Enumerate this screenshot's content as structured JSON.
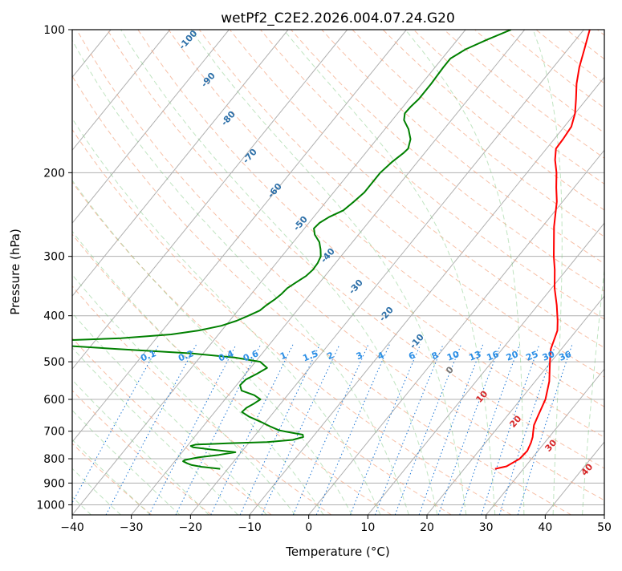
{
  "chart_data": {
    "type": "line",
    "title": "wetPf2_C2E2.2026.004.07.24.G20",
    "xlabel": "Temperature (°C)",
    "ylabel": "Pressure (hPa)",
    "xlim": [
      -40,
      50
    ],
    "ylim": [
      1050,
      100
    ],
    "y_scale": "log",
    "x_ticks": [
      -40,
      -30,
      -20,
      -10,
      0,
      10,
      20,
      30,
      40,
      50
    ],
    "y_ticks": [
      100,
      200,
      300,
      400,
      500,
      600,
      700,
      800,
      900,
      1000
    ],
    "grid": true,
    "skew": true,
    "series": [
      {
        "color": "#ff0000",
        "points": [
          [
            840,
            25.2
          ],
          [
            830,
            26.8
          ],
          [
            800,
            28
          ],
          [
            770,
            28.2
          ],
          [
            740,
            27.7
          ],
          [
            720,
            27.2
          ],
          [
            700,
            26.5
          ],
          [
            680,
            25.8
          ],
          [
            650,
            25.2
          ],
          [
            600,
            24.2
          ],
          [
            550,
            22.4
          ],
          [
            500,
            19.8
          ],
          [
            470,
            18.2
          ],
          [
            430,
            16.8
          ],
          [
            410,
            15.5
          ],
          [
            380,
            13.2
          ],
          [
            350,
            10.5
          ],
          [
            320,
            8
          ],
          [
            300,
            6
          ],
          [
            260,
            2
          ],
          [
            230,
            -1
          ],
          [
            215,
            -3
          ],
          [
            200,
            -5
          ],
          [
            188,
            -7
          ],
          [
            178,
            -8.4
          ],
          [
            170,
            -8.5
          ],
          [
            160,
            -8.8
          ],
          [
            150,
            -10
          ],
          [
            140,
            -11.8
          ],
          [
            130,
            -13.8
          ],
          [
            120,
            -15.6
          ],
          [
            110,
            -17.2
          ],
          [
            100,
            -19
          ]
        ]
      },
      {
        "color": "#008000",
        "points": [
          [
            840,
            -21.3
          ],
          [
            832,
            -24.7
          ],
          [
            825,
            -26.6
          ],
          [
            818,
            -27.6
          ],
          [
            810,
            -28.6
          ],
          [
            805,
            -28.5
          ],
          [
            795,
            -26.6
          ],
          [
            785,
            -23.4
          ],
          [
            775,
            -21
          ],
          [
            765,
            -25.5
          ],
          [
            757,
            -28.8
          ],
          [
            752,
            -29.4
          ],
          [
            747,
            -28.8
          ],
          [
            742,
            -23.5
          ],
          [
            738,
            -17
          ],
          [
            730,
            -13
          ],
          [
            720,
            -11.6
          ],
          [
            712,
            -12
          ],
          [
            705,
            -14.2
          ],
          [
            697,
            -16.6
          ],
          [
            685,
            -18.5
          ],
          [
            670,
            -20.7
          ],
          [
            652,
            -23.6
          ],
          [
            638,
            -25.4
          ],
          [
            625,
            -25.2
          ],
          [
            612,
            -24.5
          ],
          [
            600,
            -24
          ],
          [
            588,
            -25.6
          ],
          [
            575,
            -28.4
          ],
          [
            560,
            -29.4
          ],
          [
            545,
            -29.2
          ],
          [
            530,
            -28.1
          ],
          [
            515,
            -27.2
          ],
          [
            500,
            -29.2
          ],
          [
            490,
            -34
          ],
          [
            480,
            -42
          ],
          [
            470,
            -55
          ],
          [
            462,
            -65
          ],
          [
            456,
            -71
          ],
          [
            452,
            -67.5
          ],
          [
            446,
            -56
          ],
          [
            438,
            -48
          ],
          [
            430,
            -44
          ],
          [
            420,
            -40.7
          ],
          [
            410,
            -38.8
          ],
          [
            400,
            -37.5
          ],
          [
            390,
            -36.3
          ],
          [
            380,
            -35.9
          ],
          [
            370,
            -35.3
          ],
          [
            360,
            -34.9
          ],
          [
            350,
            -34.7
          ],
          [
            340,
            -34
          ],
          [
            330,
            -33.2
          ],
          [
            320,
            -32.9
          ],
          [
            310,
            -33
          ],
          [
            300,
            -33.4
          ],
          [
            290,
            -34.4
          ],
          [
            280,
            -35.6
          ],
          [
            270,
            -37.4
          ],
          [
            262,
            -38.4
          ],
          [
            255,
            -38.2
          ],
          [
            248,
            -37.4
          ],
          [
            240,
            -35.9
          ],
          [
            230,
            -35.3
          ],
          [
            220,
            -34.8
          ],
          [
            210,
            -34.8
          ],
          [
            200,
            -34.8
          ],
          [
            190,
            -34.3
          ],
          [
            182,
            -33.6
          ],
          [
            178,
            -33.4
          ],
          [
            170,
            -34.3
          ],
          [
            162,
            -36
          ],
          [
            155,
            -38
          ],
          [
            150,
            -38.8
          ],
          [
            145,
            -38.7
          ],
          [
            140,
            -38.4
          ],
          [
            135,
            -38.4
          ],
          [
            130,
            -38.4
          ],
          [
            125,
            -38.5
          ],
          [
            120,
            -38.6
          ],
          [
            115,
            -38.6
          ],
          [
            110,
            -37.3
          ],
          [
            105,
            -35
          ],
          [
            100,
            -32.3
          ]
        ]
      }
    ],
    "dry_adiabat_labels": [
      "-100",
      "-90",
      "-80",
      "-70",
      "-60",
      "-50",
      "-40",
      "-30",
      "-20",
      "-10",
      "0",
      "10",
      "20",
      "30",
      "40"
    ],
    "mixing_ratio_labels": [
      "0.1",
      "0.2",
      "0.4",
      "0.6",
      "1",
      "1.5",
      "2",
      "3",
      "4",
      "6",
      "8",
      "10",
      "13",
      "16",
      "20",
      "25",
      "30",
      "36"
    ]
  }
}
